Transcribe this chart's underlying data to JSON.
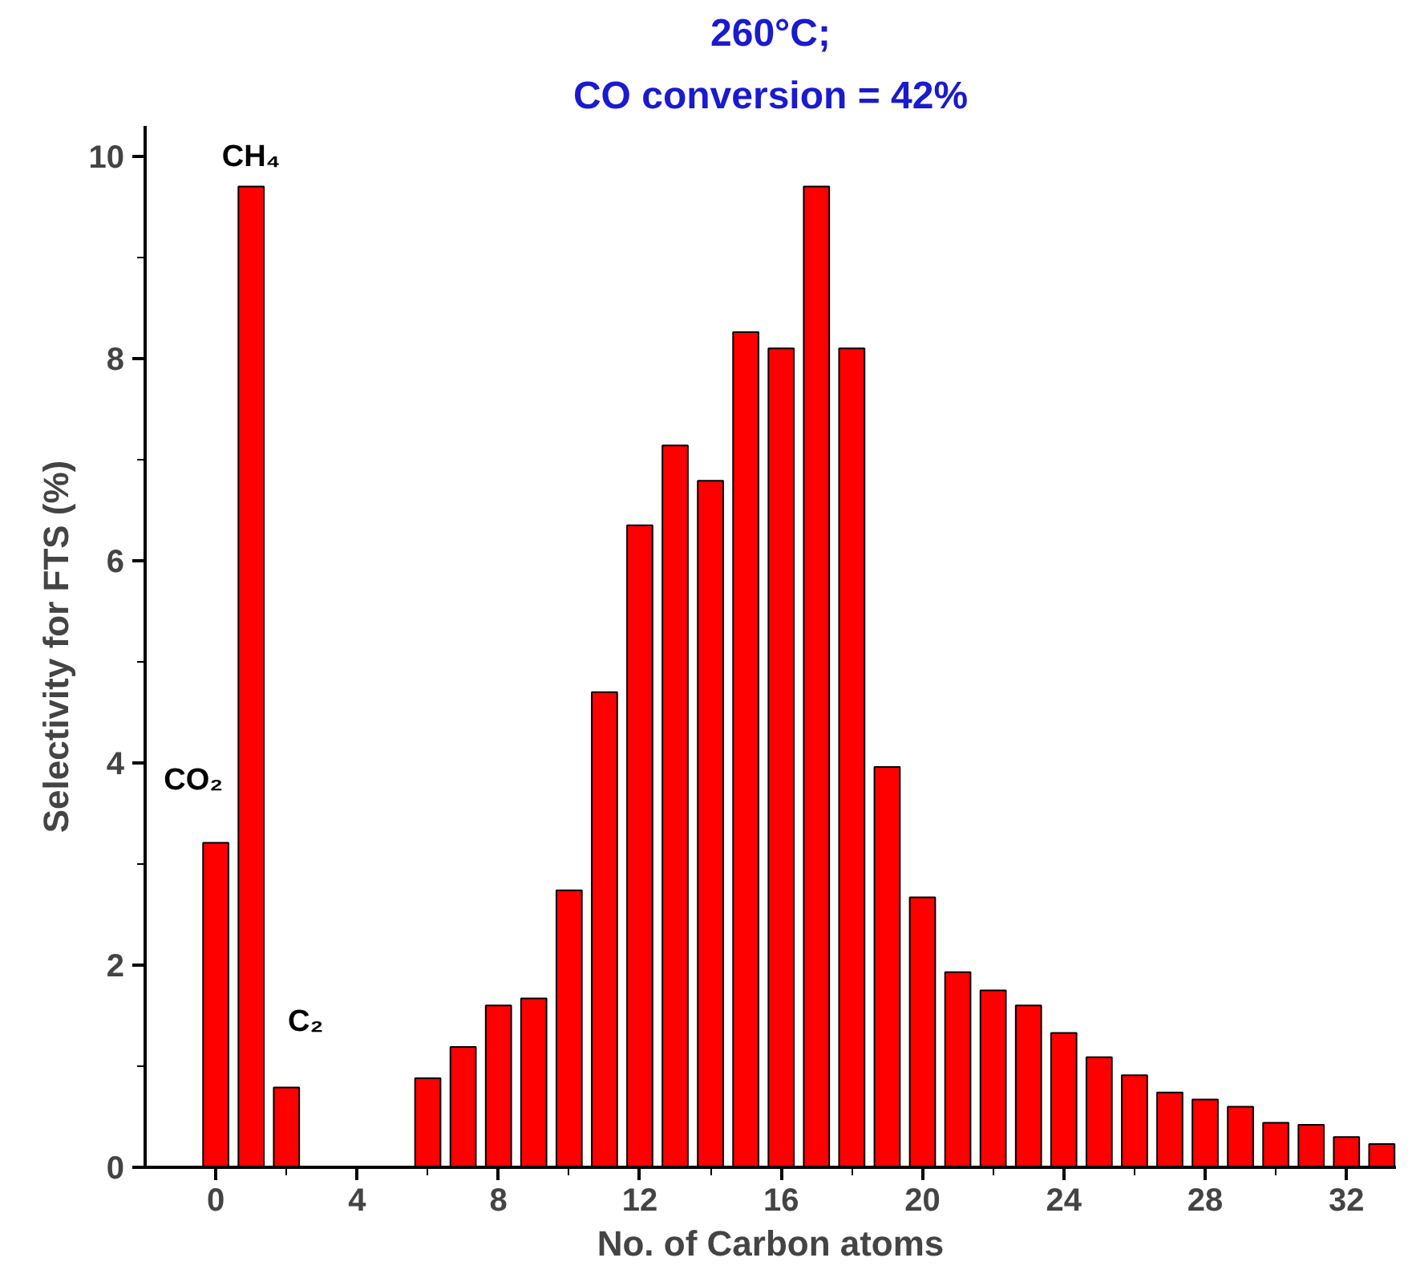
{
  "chart_data": {
    "type": "bar",
    "title": "260°C;",
    "subtitle": "CO conversion = 42%",
    "xlabel": "No. of Carbon atoms",
    "ylabel": "Selectivity for FTS (%)",
    "x": [
      0,
      1,
      2,
      3,
      4,
      5,
      6,
      7,
      8,
      9,
      10,
      11,
      12,
      13,
      14,
      15,
      16,
      17,
      18,
      19,
      20,
      21,
      22,
      23,
      24,
      25,
      26,
      27,
      28,
      29,
      30,
      31,
      32,
      33
    ],
    "values": [
      3.21,
      9.7,
      0.79,
      null,
      null,
      null,
      0.88,
      1.19,
      1.6,
      1.67,
      2.74,
      4.7,
      6.35,
      7.14,
      6.79,
      8.26,
      8.1,
      9.7,
      8.1,
      3.96,
      2.67,
      1.93,
      1.75,
      1.6,
      1.33,
      1.09,
      0.91,
      0.74,
      0.67,
      0.6,
      0.44,
      0.42,
      0.3,
      0.23
    ],
    "color": "#ff0000",
    "xlim": [
      -2,
      33.4
    ],
    "xticks": [
      0,
      4,
      8,
      12,
      16,
      20,
      24,
      28,
      32
    ],
    "ylim": [
      0,
      10.3
    ],
    "yticks": [
      0,
      2,
      4,
      6,
      8,
      10
    ],
    "grid": false,
    "annotations": [
      {
        "text": "CO₂",
        "x": 0,
        "y": 3.21
      },
      {
        "text": "CH₄",
        "x": 1,
        "y": 9.7
      },
      {
        "text": "C₂",
        "x": 2,
        "y": 0.79
      }
    ]
  }
}
